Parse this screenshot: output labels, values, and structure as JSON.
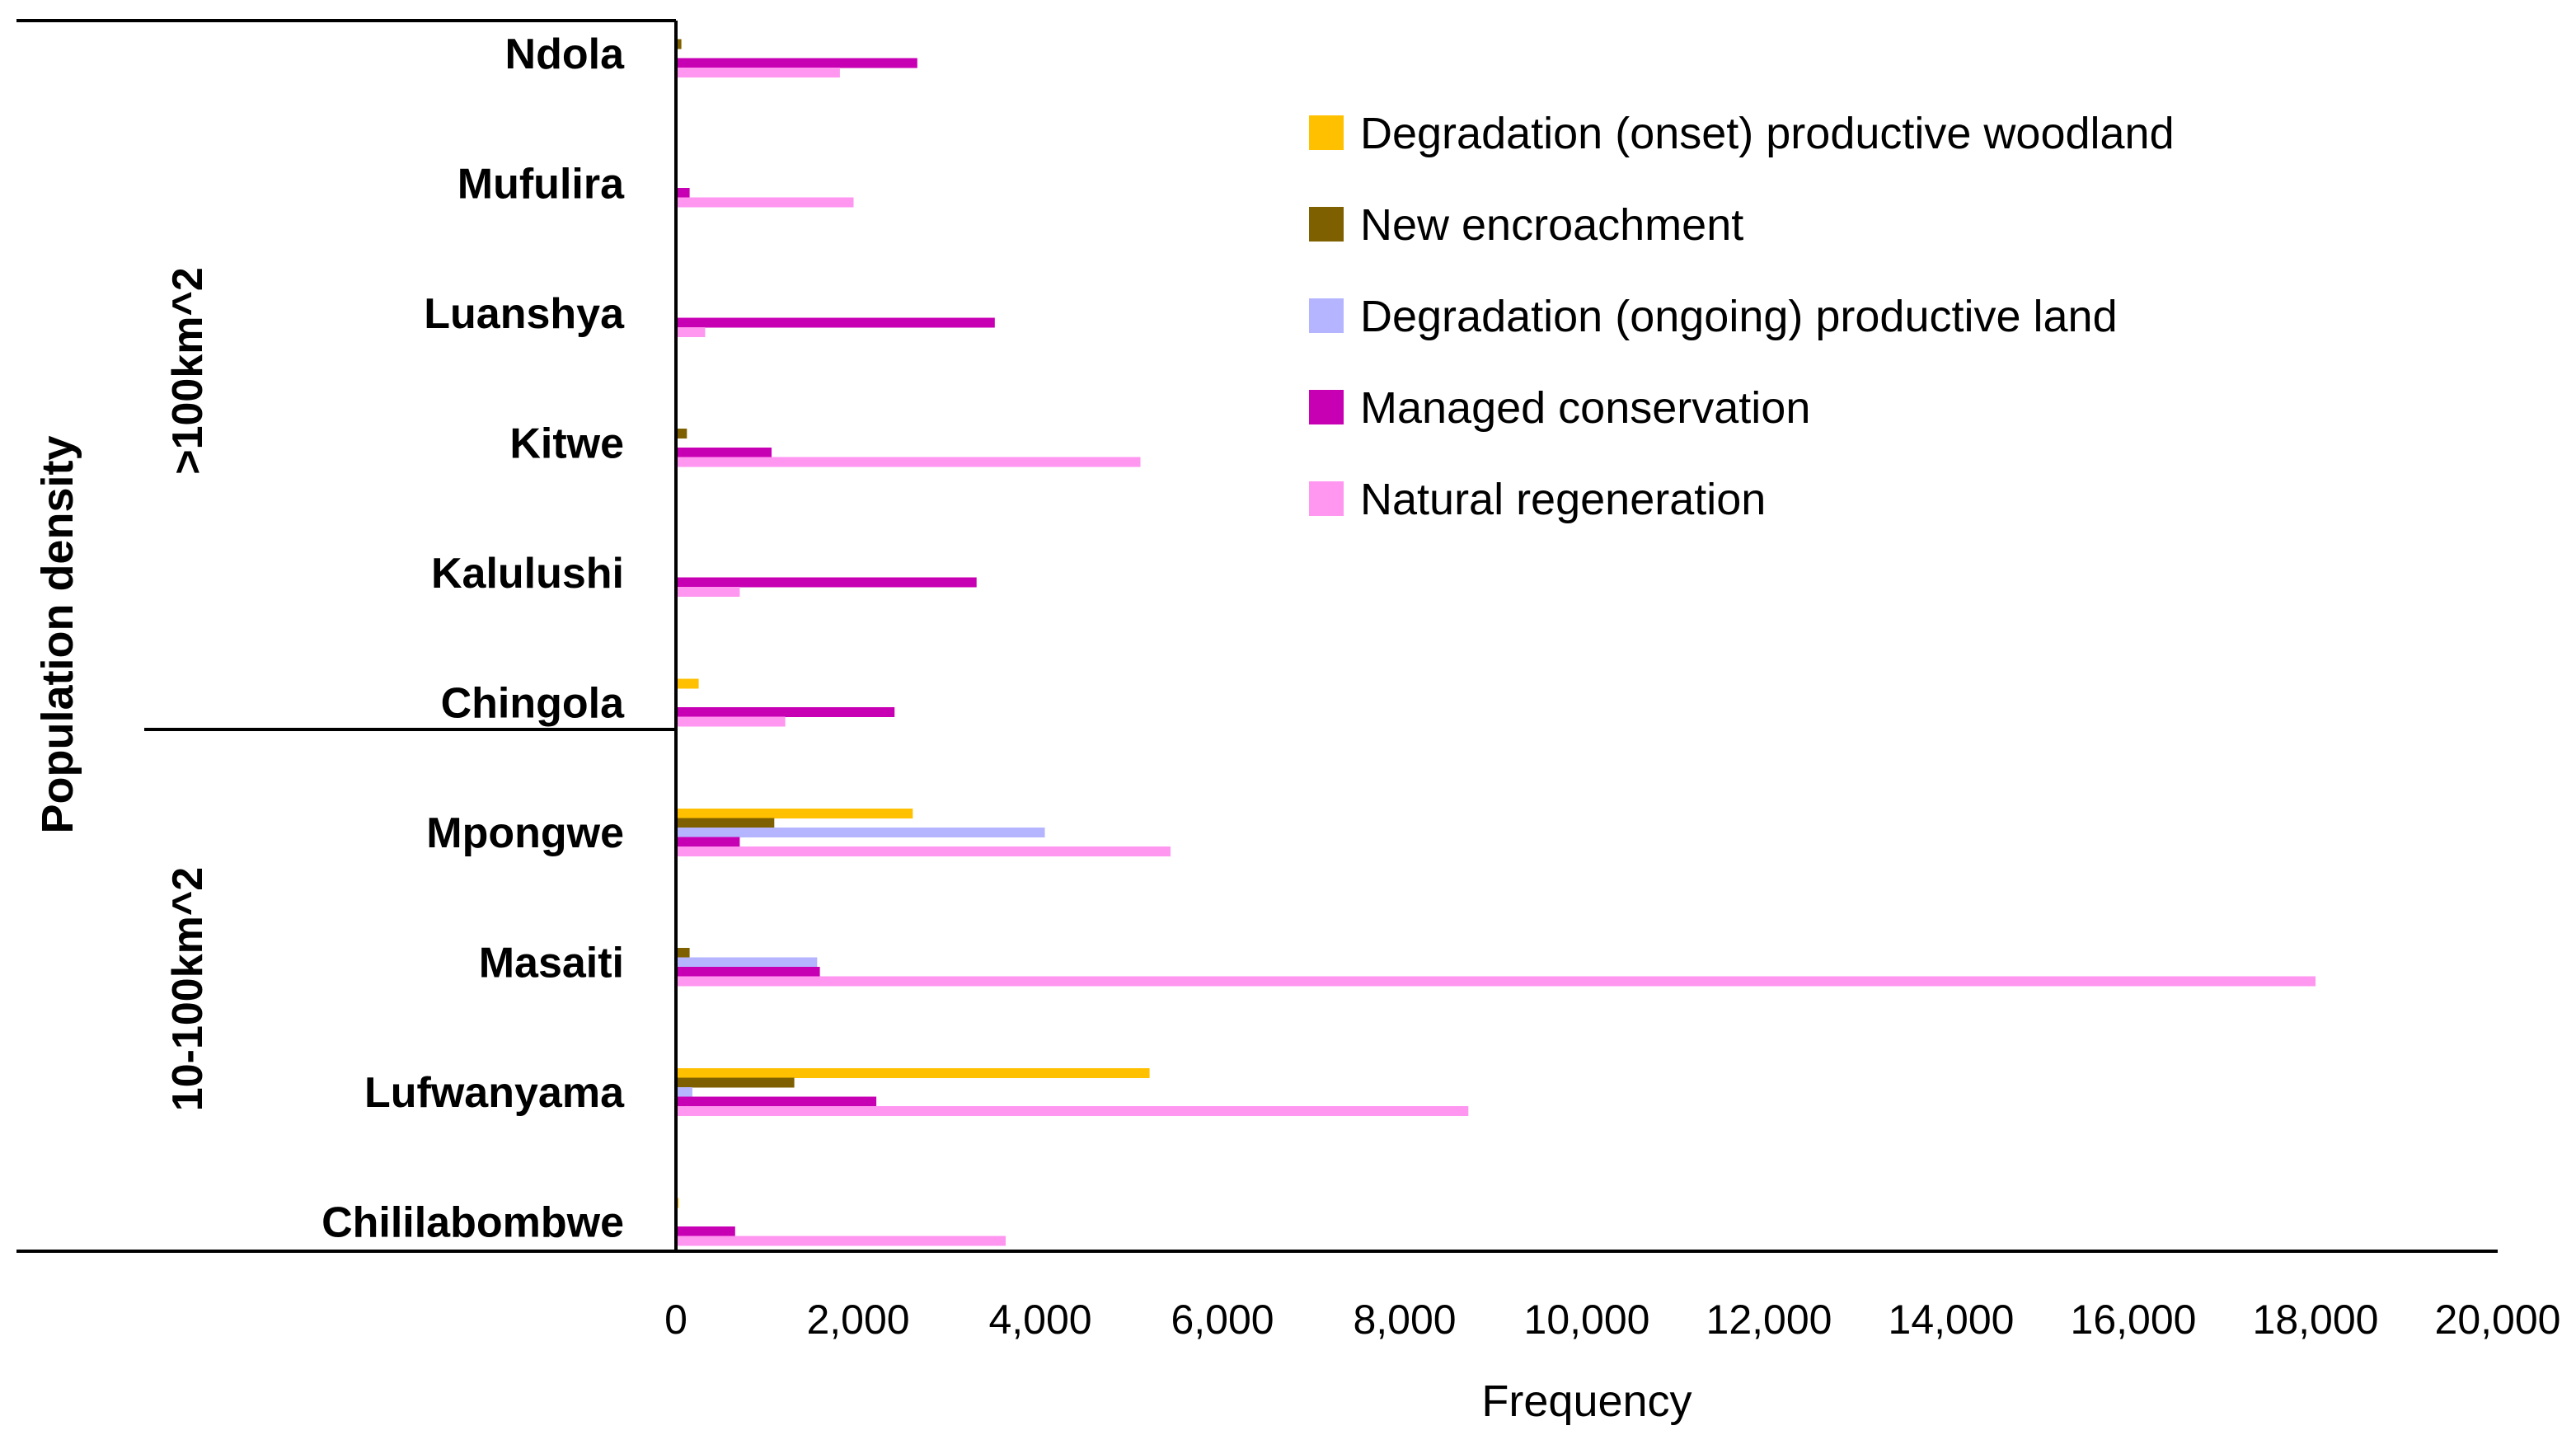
{
  "chart_data": {
    "type": "bar",
    "orientation": "horizontal",
    "title": "",
    "xlabel": "Frequency",
    "ylabel": "Population density",
    "xlim": [
      0,
      20000
    ],
    "x_ticks": [
      "0",
      "2,000",
      "4,000",
      "6,000",
      "8,000",
      "10,000",
      "12,000",
      "14,000",
      "16,000",
      "18,000",
      "20,000"
    ],
    "categories": [
      "Ndola",
      "Mufulira",
      "Luanshya",
      "Kitwe",
      "Kalulushi",
      "Chingola",
      "Mpongwe",
      "Masaiti",
      "Lufwanyama",
      "Chililabombwe"
    ],
    "groups": [
      {
        "label": ">100km^2",
        "categories": [
          "Ndola",
          "Mufulira",
          "Luanshya",
          "Kitwe",
          "Kalulushi",
          "Chingola"
        ]
      },
      {
        "label": "10-100km^2",
        "categories": [
          "Mpongwe",
          "Masaiti",
          "Lufwanyama",
          "Chililabombwe"
        ]
      }
    ],
    "legend_position": "top-right",
    "series": [
      {
        "name": "Degradation (onset) productive woodland",
        "color": "#FFC000",
        "values": [
          0,
          0,
          0,
          0,
          0,
          250,
          2600,
          0,
          5200,
          30
        ]
      },
      {
        "name": "New encroachment",
        "color": "#7F6000",
        "values": [
          60,
          0,
          0,
          120,
          0,
          0,
          1080,
          150,
          1300,
          0
        ]
      },
      {
        "name": "Degradation (ongoing) productive land",
        "color": "#B4B4FF",
        "values": [
          0,
          0,
          0,
          0,
          0,
          0,
          4050,
          1550,
          180,
          0
        ]
      },
      {
        "name": "Managed conservation",
        "color": "#C800B4",
        "values": [
          2650,
          150,
          3500,
          1050,
          3300,
          2400,
          700,
          1580,
          2200,
          650
        ]
      },
      {
        "name": "Natural regeneration",
        "color": "#FF96F0",
        "values": [
          1800,
          1950,
          320,
          5100,
          700,
          1200,
          5430,
          18000,
          8700,
          3620
        ]
      }
    ]
  }
}
